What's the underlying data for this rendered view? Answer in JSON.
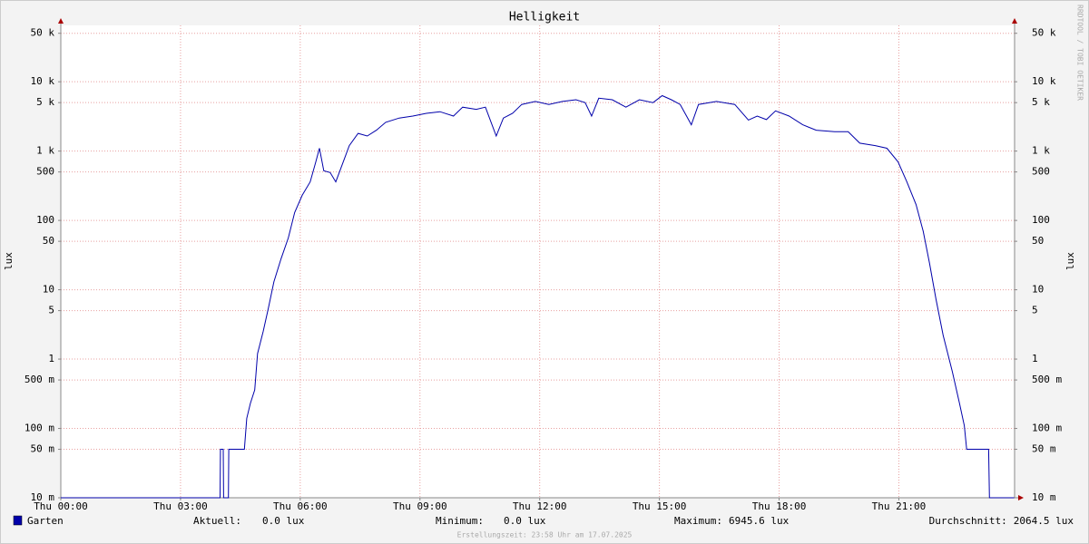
{
  "chart_data": {
    "type": "line",
    "title": "Helligkeit",
    "y_label": "lux",
    "y2_label": "lux",
    "log_y": true,
    "grid": true,
    "xlim": [
      0,
      23.9
    ],
    "xticks": [
      {
        "value": 0,
        "label": "Thu 00:00"
      },
      {
        "value": 3,
        "label": "Thu 03:00"
      },
      {
        "value": 6,
        "label": "Thu 06:00"
      },
      {
        "value": 9,
        "label": "Thu 09:00"
      },
      {
        "value": 12,
        "label": "Thu 12:00"
      },
      {
        "value": 15,
        "label": "Thu 15:00"
      },
      {
        "value": 18,
        "label": "Thu 18:00"
      },
      {
        "value": 21,
        "label": "Thu 21:00"
      }
    ],
    "ylim": [
      0.01,
      65000
    ],
    "yticks": [
      {
        "value": 0.01,
        "label": "10 m"
      },
      {
        "value": 0.05,
        "label": "50 m"
      },
      {
        "value": 0.1,
        "label": "100 m"
      },
      {
        "value": 0.5,
        "label": "500 m"
      },
      1,
      5,
      10,
      50,
      100,
      500,
      {
        "value": 1000,
        "label": "1 k"
      },
      {
        "value": 5000,
        "label": "5 k"
      },
      {
        "value": 10000,
        "label": "10 k"
      },
      {
        "value": 50000,
        "label": "50 k"
      }
    ],
    "x": [
      0,
      3.99,
      4.0,
      4.07,
      4.08,
      4.2,
      4.21,
      4.6,
      4.66,
      4.75,
      4.86,
      4.93,
      5.07,
      5.2,
      5.34,
      5.52,
      5.7,
      5.86,
      6.05,
      6.25,
      6.39,
      6.48,
      6.59,
      6.75,
      6.89,
      7.02,
      7.23,
      7.45,
      7.68,
      7.91,
      8.14,
      8.48,
      8.82,
      9.16,
      9.5,
      9.84,
      10.07,
      10.41,
      10.64,
      10.91,
      11.09,
      11.32,
      11.55,
      11.89,
      12.23,
      12.57,
      12.91,
      13.14,
      13.3,
      13.48,
      13.82,
      14.16,
      14.5,
      14.84,
      15.07,
      15.3,
      15.52,
      15.8,
      15.98,
      16.43,
      16.89,
      17.23,
      17.45,
      17.68,
      17.91,
      18.25,
      18.59,
      18.93,
      19.39,
      19.73,
      20.02,
      20.41,
      20.7,
      20.98,
      21.2,
      21.43,
      21.61,
      21.77,
      21.93,
      22.11,
      22.34,
      22.52,
      22.64,
      22.7,
      23.25,
      23.27,
      23.89
    ],
    "series": [
      {
        "name": "Garten",
        "color": "#0000aa",
        "values": [
          0.01,
          0.01,
          0.05,
          0.05,
          0.01,
          0.01,
          0.05,
          0.05,
          0.14,
          0.23,
          0.36,
          1.2,
          2.5,
          5.4,
          13,
          28,
          56,
          130,
          230,
          360,
          700,
          1100,
          520,
          490,
          360,
          570,
          1200,
          1800,
          1650,
          2000,
          2600,
          3000,
          3200,
          3500,
          3700,
          3200,
          4300,
          4000,
          4300,
          1650,
          3000,
          3500,
          4700,
          5200,
          4700,
          5200,
          5500,
          5000,
          3200,
          5800,
          5500,
          4300,
          5500,
          5000,
          6300,
          5500,
          4700,
          2400,
          4700,
          5200,
          4700,
          2800,
          3200,
          2850,
          3800,
          3200,
          2400,
          2000,
          1900,
          1900,
          1300,
          1200,
          1100,
          700,
          360,
          170,
          70,
          24,
          7.3,
          2.2,
          0.66,
          0.23,
          0.11,
          0.05,
          0.05,
          0.01,
          0.01
        ]
      }
    ],
    "stats": [
      {
        "label": "Aktuell:",
        "value": "0.0 lux"
      },
      {
        "label": "Minimum:",
        "value": "0.0 lux"
      },
      {
        "label": "Maximum:",
        "value": "6945.6 lux"
      },
      {
        "label": "Durchschnitt:",
        "value": "2064.5 lux"
      }
    ],
    "watermark": "RRDTOOL / TOBI OETIKER",
    "footer": "Erstellungszeit: 23:58 Uhr am 17.07.2025"
  }
}
